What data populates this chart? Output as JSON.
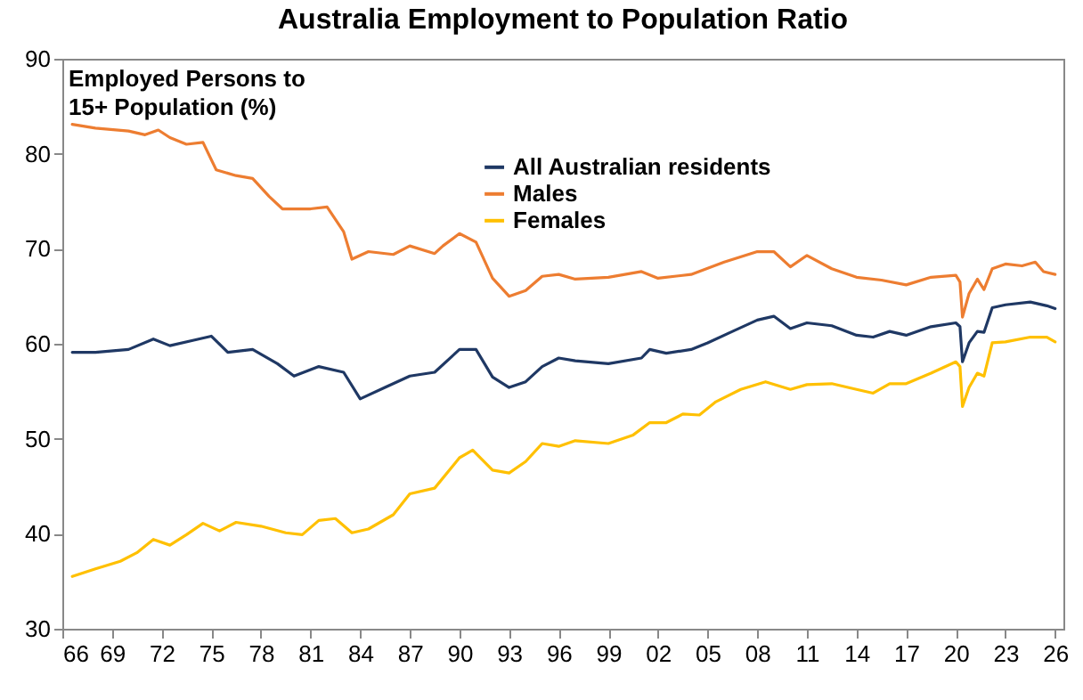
{
  "chart_data": {
    "type": "line",
    "title": "Australia Employment to Population Ratio",
    "ylabel": "Employed Persons to 15+ Population (%)",
    "xlim": [
      1966,
      2026.5
    ],
    "ylim": [
      30,
      90
    ],
    "yticks": [
      30,
      40,
      50,
      60,
      70,
      80,
      90
    ],
    "xticks": [
      {
        "value": 1966,
        "label": "66"
      },
      {
        "value": 1969,
        "label": "69"
      },
      {
        "value": 1972,
        "label": "72"
      },
      {
        "value": 1975,
        "label": "75"
      },
      {
        "value": 1978,
        "label": "78"
      },
      {
        "value": 1981,
        "label": "81"
      },
      {
        "value": 1984,
        "label": "84"
      },
      {
        "value": 1987,
        "label": "87"
      },
      {
        "value": 1990,
        "label": "90"
      },
      {
        "value": 1993,
        "label": "93"
      },
      {
        "value": 1996,
        "label": "96"
      },
      {
        "value": 1999,
        "label": "99"
      },
      {
        "value": 2002,
        "label": "02"
      },
      {
        "value": 2005,
        "label": "05"
      },
      {
        "value": 2008,
        "label": "08"
      },
      {
        "value": 2011,
        "label": "11"
      },
      {
        "value": 2014,
        "label": "14"
      },
      {
        "value": 2017,
        "label": "17"
      },
      {
        "value": 2020,
        "label": "20"
      },
      {
        "value": 2023,
        "label": "23"
      },
      {
        "value": 2026,
        "label": "26"
      }
    ],
    "grid": false,
    "legend": "top",
    "line_style": "solid",
    "marker": "none",
    "series": [
      {
        "name": "All Australian residents",
        "color": "#1f3864",
        "x": [
          1966.6,
          1968,
          1970,
          1971.5,
          1972.5,
          1974,
          1975,
          1976,
          1977.5,
          1979,
          1980,
          1981.5,
          1983,
          1984,
          1985.5,
          1987,
          1988.5,
          1990,
          1991,
          1992,
          1993,
          1994,
          1995,
          1996,
          1997,
          1999,
          2001,
          2001.5,
          2002.5,
          2004,
          2005,
          2006.5,
          2008,
          2009,
          2010,
          2011,
          2012.5,
          2014,
          2015,
          2016,
          2017,
          2018.5,
          2020,
          2020.25,
          2020.4,
          2020.8,
          2021.3,
          2021.7,
          2022.2,
          2023,
          2024.5,
          2025.5,
          2026
        ],
        "values": [
          59.1,
          59.1,
          59.4,
          60.5,
          59.8,
          60.4,
          60.8,
          59.1,
          59.4,
          57.9,
          56.6,
          57.6,
          57.0,
          54.2,
          55.4,
          56.6,
          57.0,
          59.4,
          59.4,
          56.5,
          55.4,
          56.0,
          57.6,
          58.5,
          58.2,
          57.9,
          58.5,
          59.4,
          59.0,
          59.4,
          60.1,
          61.3,
          62.5,
          62.9,
          61.6,
          62.2,
          61.9,
          60.9,
          60.7,
          61.3,
          60.9,
          61.8,
          62.2,
          61.8,
          58.1,
          60.1,
          61.3,
          61.2,
          63.8,
          64.1,
          64.4,
          64.0,
          63.7
        ]
      },
      {
        "name": "Males",
        "color": "#ed7d31",
        "x": [
          1966.6,
          1968,
          1970,
          1971,
          1971.8,
          1972.5,
          1973.5,
          1974.5,
          1975.3,
          1976.5,
          1977.5,
          1978.5,
          1979.3,
          1981,
          1982,
          1983,
          1983.5,
          1984.5,
          1986,
          1987,
          1988.5,
          1989,
          1990,
          1991,
          1992,
          1993,
          1994,
          1995,
          1996,
          1997,
          1999,
          2001,
          2002,
          2004,
          2006,
          2008,
          2009,
          2010,
          2011,
          2012.5,
          2014,
          2015.5,
          2017,
          2018.5,
          2020,
          2020.25,
          2020.4,
          2020.8,
          2021.3,
          2021.7,
          2022.2,
          2023,
          2024,
          2024.8,
          2025.3,
          2026
        ],
        "values": [
          83.1,
          82.7,
          82.4,
          82.0,
          82.5,
          81.7,
          81.0,
          81.2,
          78.3,
          77.7,
          77.4,
          75.5,
          74.2,
          74.2,
          74.4,
          71.8,
          68.9,
          69.7,
          69.4,
          70.3,
          69.5,
          70.3,
          71.6,
          70.7,
          66.9,
          65.0,
          65.6,
          67.1,
          67.3,
          66.8,
          67.0,
          67.6,
          66.9,
          67.3,
          68.6,
          69.7,
          69.7,
          68.1,
          69.3,
          67.9,
          67.0,
          66.7,
          66.2,
          67.0,
          67.2,
          66.5,
          62.8,
          65.3,
          66.8,
          65.7,
          67.9,
          68.4,
          68.2,
          68.6,
          67.6,
          67.3
        ]
      },
      {
        "name": "Females",
        "color": "#ffc000",
        "x": [
          1966.6,
          1968,
          1969.5,
          1970.5,
          1971.5,
          1972.5,
          1973.5,
          1974.5,
          1975.5,
          1976.5,
          1978,
          1979.5,
          1980.5,
          1981.5,
          1982.5,
          1983.5,
          1984.5,
          1986,
          1987,
          1988.5,
          1990,
          1990.8,
          1992,
          1993,
          1994,
          1995,
          1996,
          1997,
          1999,
          2000.5,
          2001.5,
          2002.5,
          2003.5,
          2004.5,
          2005.5,
          2007,
          2008.5,
          2010,
          2011,
          2012.5,
          2014,
          2015,
          2016,
          2017,
          2018.5,
          2020,
          2020.25,
          2020.4,
          2020.8,
          2021.3,
          2021.7,
          2022.2,
          2023,
          2024.5,
          2025.5,
          2026
        ],
        "values": [
          35.5,
          36.3,
          37.1,
          38.0,
          39.4,
          38.8,
          39.9,
          41.1,
          40.3,
          41.2,
          40.8,
          40.1,
          39.9,
          41.4,
          41.6,
          40.1,
          40.5,
          42.0,
          44.2,
          44.8,
          48.0,
          48.8,
          46.7,
          46.4,
          47.6,
          49.5,
          49.2,
          49.8,
          49.5,
          50.4,
          51.7,
          51.7,
          52.6,
          52.5,
          53.9,
          55.2,
          56.0,
          55.2,
          55.7,
          55.8,
          55.2,
          54.8,
          55.8,
          55.8,
          56.9,
          58.1,
          57.6,
          53.4,
          55.4,
          56.9,
          56.6,
          60.1,
          60.2,
          60.7,
          60.7,
          60.2
        ]
      }
    ]
  }
}
